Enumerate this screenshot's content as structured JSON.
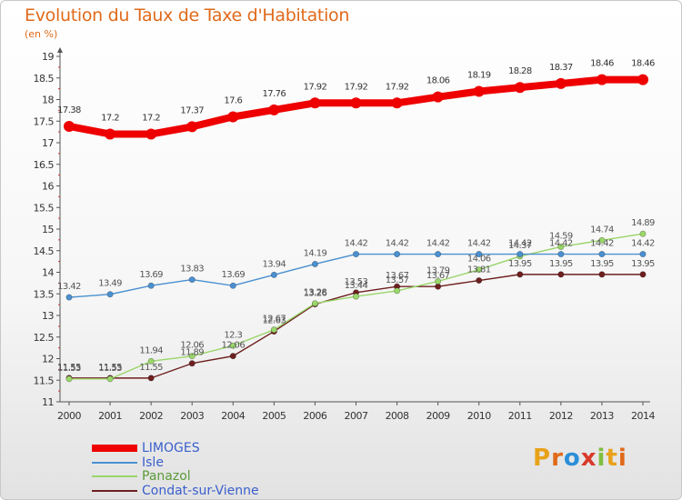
{
  "title": "Evolution du Taux de Taxe d'Habitation",
  "subtitle": "(en %)",
  "logo": {
    "text": "Proxiti",
    "letters": [
      {
        "ch": "P",
        "color": "#e8a21a"
      },
      {
        "ch": "r",
        "color": "#e06a1a"
      },
      {
        "ch": "o",
        "color": "#2b8fd8"
      },
      {
        "ch": "x",
        "color": "#d93a2b"
      },
      {
        "ch": "i",
        "color": "#7fbf3f"
      },
      {
        "ch": "t",
        "color": "#e8a21a"
      },
      {
        "ch": "i",
        "color": "#e06a1a"
      }
    ]
  },
  "chart_data": {
    "type": "line",
    "title": "Evolution du Taux de Taxe d'Habitation",
    "ylabel": "(en %)",
    "xlabel": "",
    "ylim": [
      11,
      19
    ],
    "yticks": [
      "11",
      "11.5",
      "12",
      "12.5",
      "13",
      "13.5",
      "14",
      "14.5",
      "15",
      "15.5",
      "16",
      "16.5",
      "17",
      "17.5",
      "18",
      "18.5",
      "19"
    ],
    "x": [
      "2000",
      "2001",
      "2002",
      "2003",
      "2004",
      "2005",
      "2006",
      "2007",
      "2008",
      "2009",
      "2010",
      "2011",
      "2012",
      "2013",
      "2014"
    ],
    "grid": false,
    "legend_position": "bottom-left",
    "series": [
      {
        "name": "LIMOGES",
        "color": "#ee0000",
        "labelColor": "#333333",
        "values": [
          17.38,
          17.2,
          17.2,
          17.37,
          17.6,
          17.76,
          17.92,
          17.92,
          17.92,
          18.06,
          18.19,
          18.28,
          18.37,
          18.46,
          18.46
        ]
      },
      {
        "name": "Isle",
        "color": "#4a90d0",
        "labelColor": "#555555",
        "values": [
          13.42,
          13.49,
          13.69,
          13.83,
          13.69,
          13.94,
          14.19,
          14.42,
          14.42,
          14.42,
          14.42,
          14.42,
          14.42,
          14.42,
          14.42
        ]
      },
      {
        "name": "Panazol",
        "color": "#9ad66a",
        "labelColor": "#555555",
        "values": [
          11.53,
          11.53,
          11.94,
          12.06,
          12.3,
          12.67,
          13.28,
          13.44,
          13.57,
          13.79,
          14.06,
          14.37,
          14.59,
          14.74,
          14.89
        ]
      },
      {
        "name": "Condat-sur-Vienne",
        "color": "#6e1f1f",
        "labelColor": "#555555",
        "values": [
          11.55,
          11.55,
          11.55,
          11.89,
          12.06,
          12.63,
          13.26,
          13.53,
          13.67,
          13.67,
          13.81,
          13.95,
          13.95,
          13.95,
          13.95
        ]
      }
    ]
  }
}
